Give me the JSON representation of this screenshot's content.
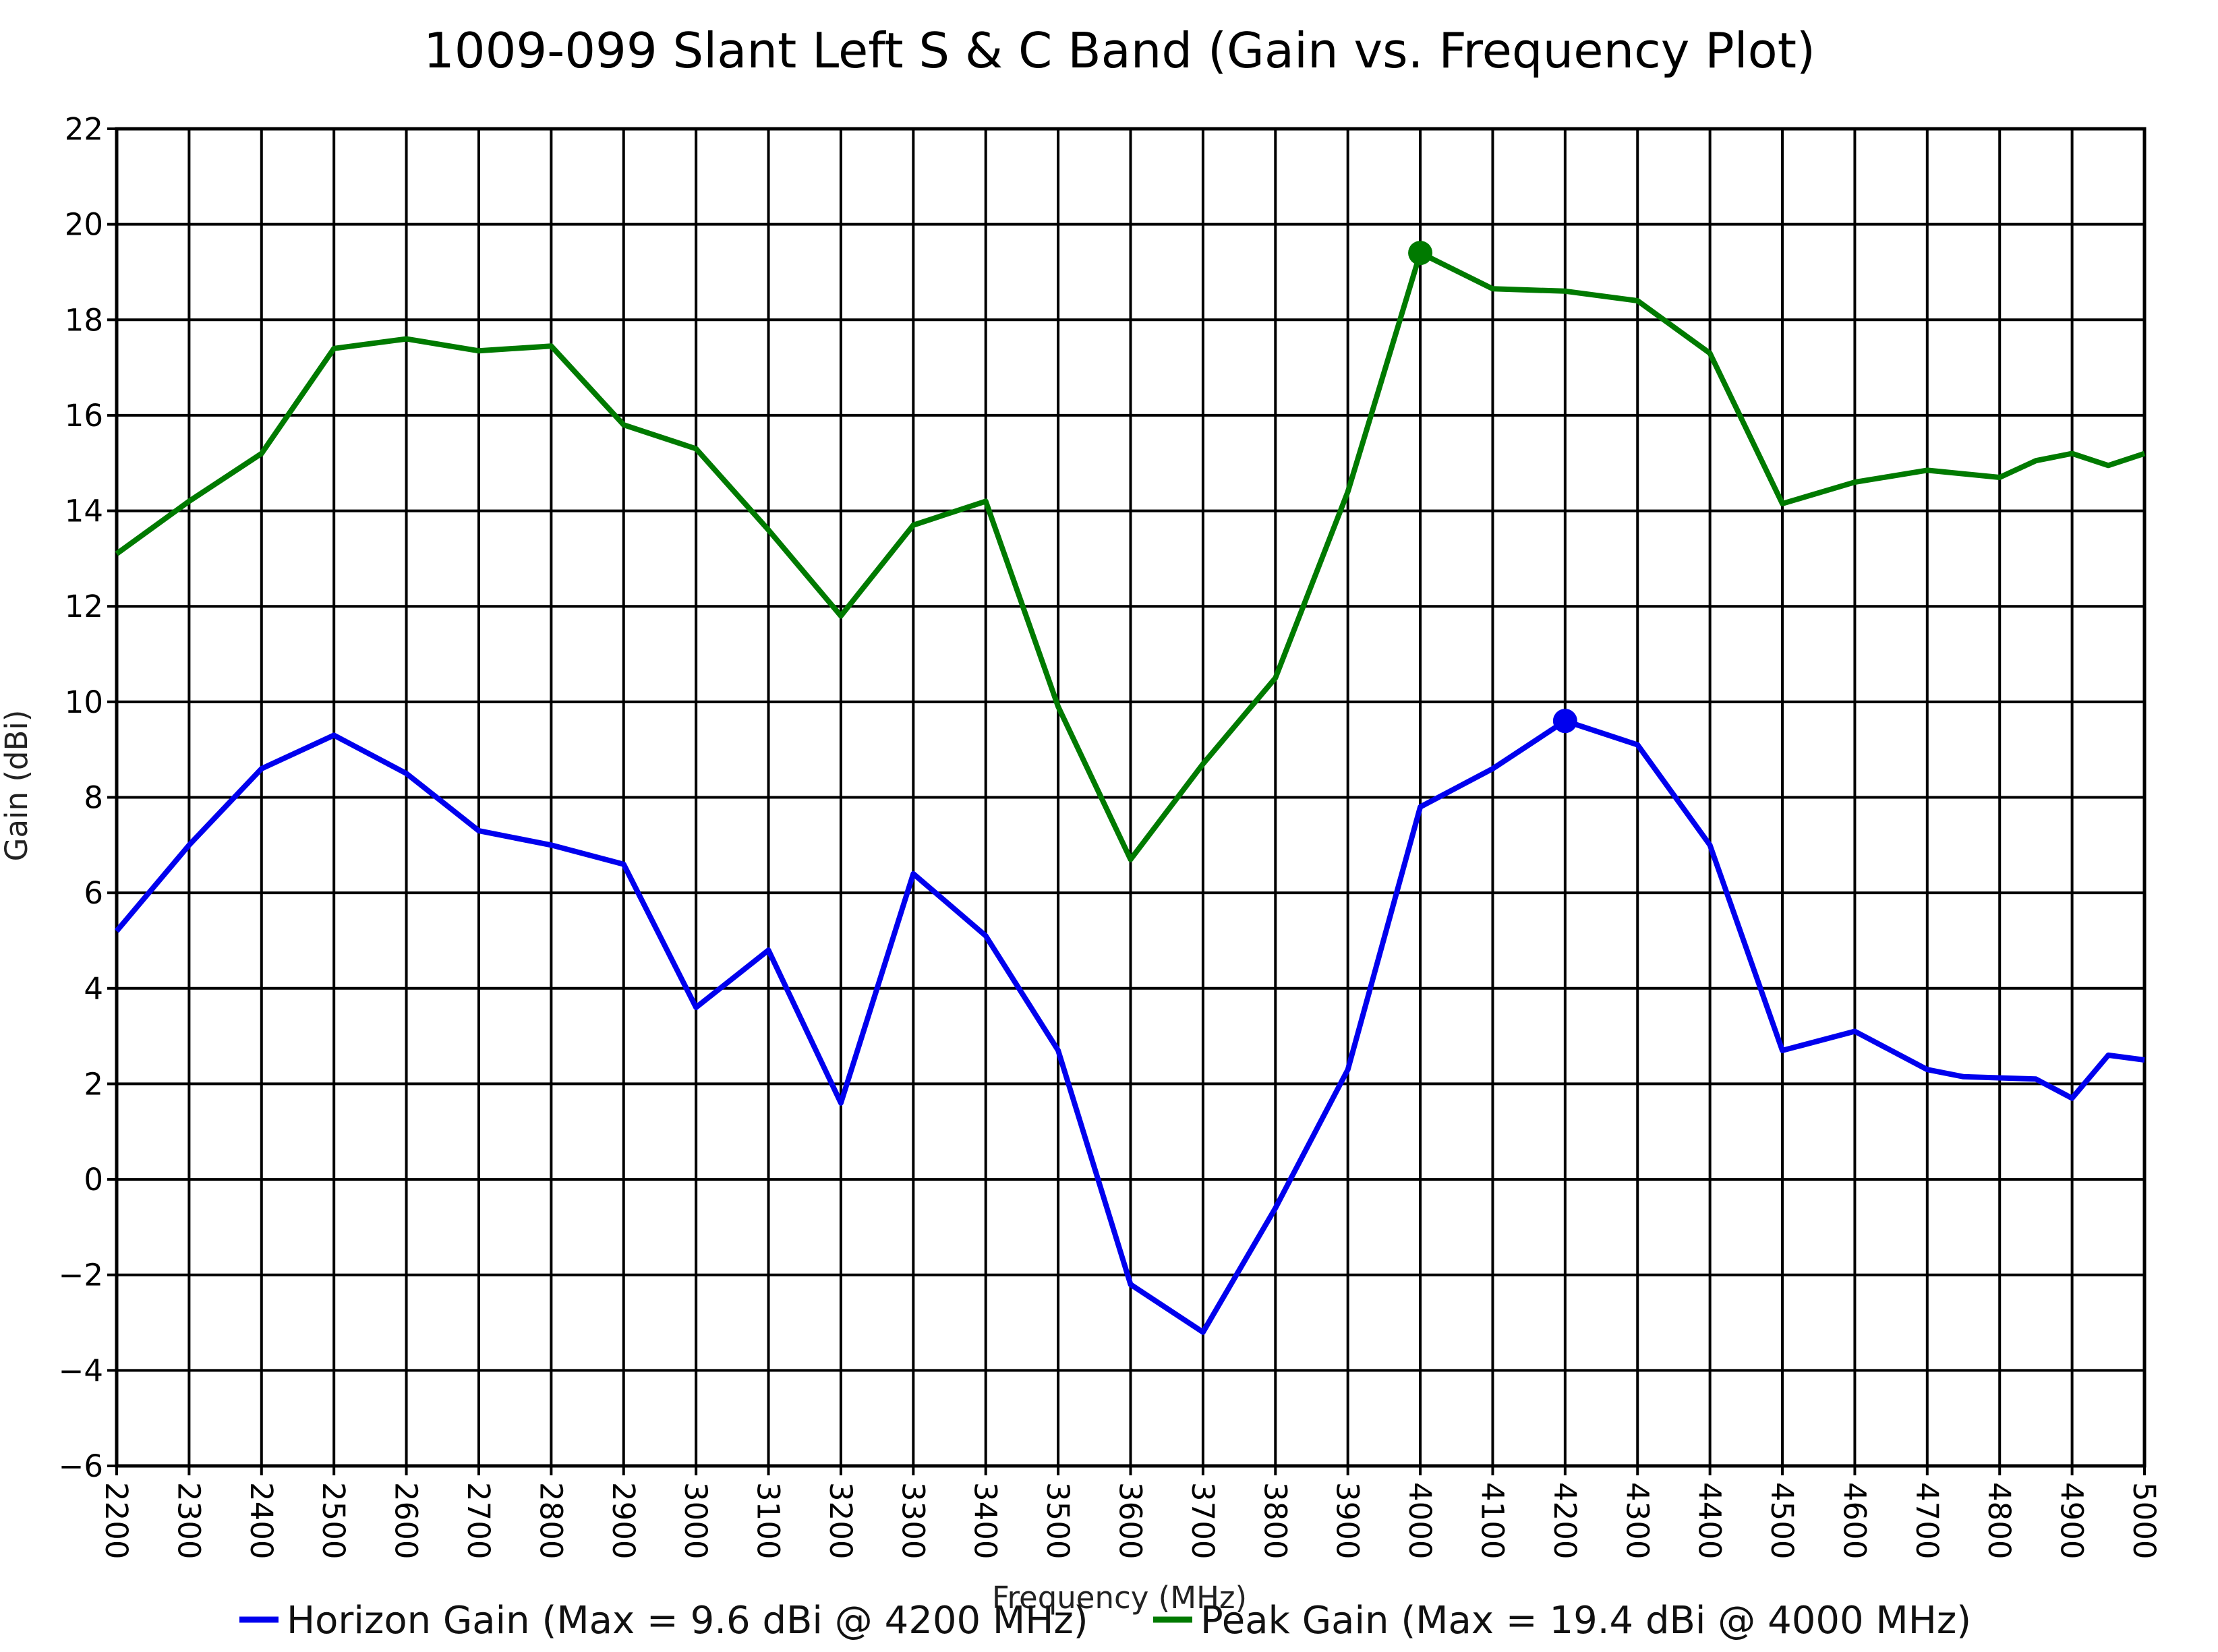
{
  "chart_data": {
    "type": "line",
    "title": "1009-099 Slant Left S & C Band (Gain vs. Frequency Plot)",
    "xlabel": "Frequency (MHz)",
    "ylabel": "Gain (dBi)",
    "xlim": [
      2200,
      5000
    ],
    "ylim": [
      -6,
      22
    ],
    "x_ticks": [
      2200,
      2300,
      2400,
      2500,
      2600,
      2700,
      2800,
      2900,
      3000,
      3100,
      3200,
      3300,
      3400,
      3500,
      3600,
      3700,
      3800,
      3900,
      4000,
      4100,
      4200,
      4300,
      4400,
      4500,
      4600,
      4700,
      4800,
      4900,
      5000
    ],
    "x_tick_labels": [
      "2200",
      "2300",
      "2400",
      "2500",
      "2600",
      "2700",
      "2800",
      "2900",
      "3000",
      "3100",
      "3200",
      "3300",
      "3400",
      "3500",
      "3600",
      "3700",
      "3800",
      "3900",
      "4000",
      "4100",
      "4200",
      "4300",
      "4400",
      "4500",
      "4600",
      "4700",
      "4800",
      "4900",
      "5000"
    ],
    "y_ticks": [
      -6,
      -4,
      -2,
      0,
      2,
      4,
      6,
      8,
      10,
      12,
      14,
      16,
      18,
      20,
      22
    ],
    "y_tick_labels": [
      "−6",
      "−4",
      "−2",
      "0",
      "2",
      "4",
      "6",
      "8",
      "10",
      "12",
      "14",
      "16",
      "18",
      "20",
      "22"
    ],
    "grid": true,
    "legend_position": "bottom",
    "series": [
      {
        "name": "Horizon Gain (Max = 9.6 dBi @ 4200 MHz)",
        "color": "#0000ee",
        "x": [
          2200,
          2300,
          2400,
          2500,
          2600,
          2700,
          2800,
          2900,
          3000,
          3100,
          3200,
          3300,
          3400,
          3500,
          3600,
          3700,
          3800,
          3900,
          4000,
          4100,
          4200,
          4300,
          4400,
          4500,
          4600,
          4700,
          4750,
          4850,
          4900,
          4950,
          5000
        ],
        "values": [
          5.2,
          7.0,
          8.6,
          9.3,
          8.5,
          7.3,
          7.0,
          6.6,
          3.6,
          4.8,
          1.6,
          6.4,
          5.1,
          2.7,
          -2.2,
          -3.2,
          -0.6,
          2.3,
          7.8,
          8.6,
          9.6,
          9.1,
          7.0,
          2.7,
          3.1,
          2.3,
          2.15,
          2.1,
          1.7,
          2.6,
          2.5
        ],
        "max_marker": {
          "x": 4200,
          "y": 9.6
        }
      },
      {
        "name": "Peak Gain (Max = 19.4 dBi @ 4000 MHz)",
        "color": "#007a00",
        "x": [
          2200,
          2300,
          2400,
          2500,
          2600,
          2700,
          2800,
          2900,
          3000,
          3100,
          3200,
          3300,
          3400,
          3500,
          3600,
          3700,
          3800,
          3900,
          4000,
          4100,
          4200,
          4300,
          4400,
          4500,
          4600,
          4700,
          4800,
          4850,
          4900,
          4950,
          5000
        ],
        "values": [
          13.1,
          14.2,
          15.2,
          17.4,
          17.6,
          17.35,
          17.45,
          15.8,
          15.3,
          13.6,
          11.8,
          13.7,
          14.2,
          9.9,
          6.7,
          8.7,
          10.5,
          14.4,
          19.4,
          18.65,
          18.6,
          18.4,
          17.3,
          14.15,
          14.6,
          14.85,
          14.7,
          15.05,
          15.2,
          14.95,
          15.2
        ],
        "max_marker": {
          "x": 4000,
          "y": 19.4
        }
      }
    ]
  }
}
